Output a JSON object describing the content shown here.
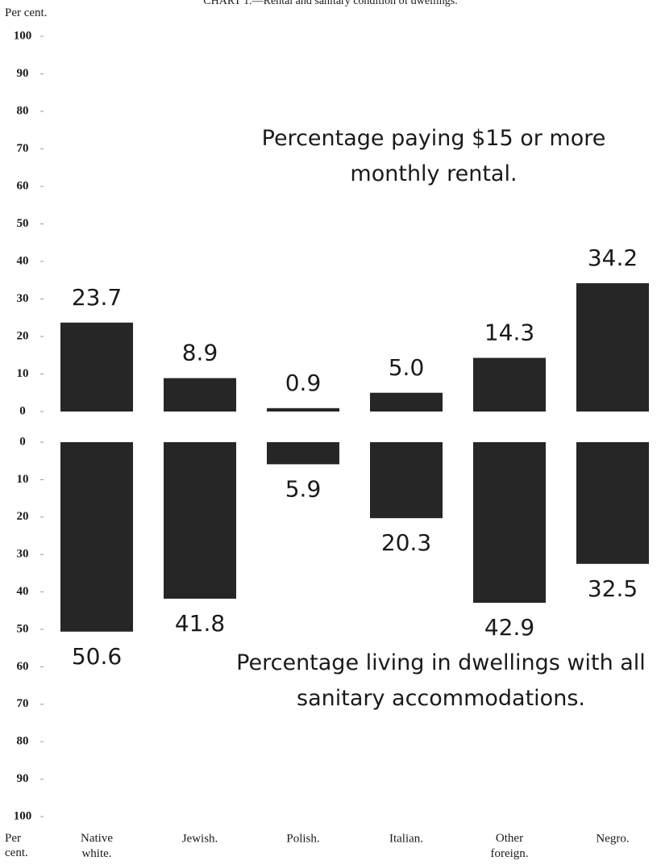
{
  "chart_data": {
    "type": "bar",
    "title": "CHART 1.—Rental and sanitary condition of dwellings.",
    "y_label": "Per cent.",
    "x_label": "Per cent.",
    "categories": [
      "Native white.",
      "Jewish.",
      "Polish.",
      "Italian.",
      "Other foreign.",
      "Negro."
    ],
    "color": "#262626",
    "panels": [
      {
        "name": "Percentage paying $15 or more monthly rental.",
        "values": [
          23.7,
          8.9,
          0.9,
          5.0,
          14.3,
          34.2
        ],
        "value_labels": [
          "23.7",
          "8.9",
          "0.9",
          "5.0",
          "14.3",
          "34.2"
        ],
        "ylim": [
          0,
          100
        ],
        "yticks": [
          0,
          10,
          20,
          30,
          40,
          50,
          60,
          70,
          80,
          90,
          100
        ],
        "inverted": false
      },
      {
        "name": "Percentage living in dwellings with all sanitary accommodations.",
        "values": [
          50.6,
          41.8,
          5.9,
          20.3,
          42.9,
          32.5
        ],
        "value_labels": [
          "50.6",
          "41.8",
          "5.9",
          "20.3",
          "42.9",
          "32.5"
        ],
        "ylim": [
          0,
          100
        ],
        "yticks": [
          0,
          10,
          20,
          30,
          40,
          50,
          60,
          70,
          80,
          90,
          100
        ],
        "inverted": true
      }
    ]
  }
}
